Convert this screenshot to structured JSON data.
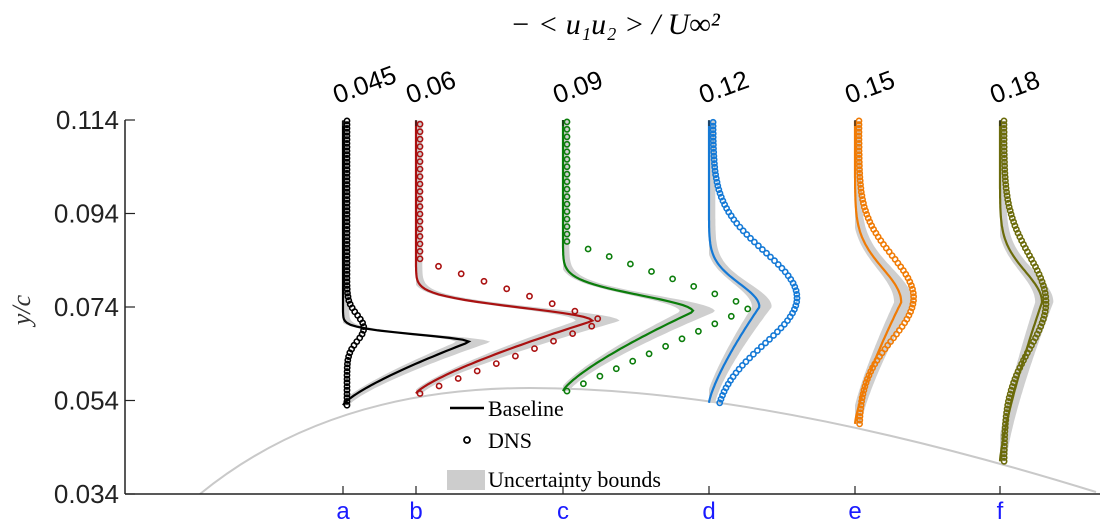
{
  "chart_data": {
    "type": "line",
    "title": "− < u₁u₂ > / U∞²",
    "ylabel": "y/c",
    "ylim": [
      0.034,
      0.114
    ],
    "yticks": [
      0.034,
      0.054,
      0.074,
      0.094,
      0.114
    ],
    "ytick_labels": [
      "0.034",
      "0.054",
      "0.074",
      "0.094",
      "0.114"
    ],
    "legend": {
      "placement": "bottom-center",
      "entries": [
        {
          "key": "baseline",
          "label": "Baseline"
        },
        {
          "key": "dns",
          "label": "DNS"
        },
        {
          "key": "uncertainty",
          "label": "Uncertainty bounds"
        }
      ]
    },
    "profiles": [
      {
        "letter": "a",
        "top_label": "0.045",
        "color": "#000000",
        "ymin": 0.053,
        "y_peak": 0.0665,
        "base_peak": 0.03,
        "base_w": 0.0025,
        "base_drop_y": 0.0715,
        "dns_peak": 0.004,
        "dns_y": 0.0695,
        "dns_w": 0.0028,
        "dns_curve": true
      },
      {
        "letter": "b",
        "top_label": "0.06",
        "color": "#aa1111",
        "ymin": 0.0555,
        "y_peak": 0.071,
        "base_peak": 0.042,
        "base_w": 0.006,
        "base_drop_y": 0.08,
        "dns_peak": 0.044,
        "dns_y": 0.071,
        "dns_w": 0.008,
        "dns_curve": false
      },
      {
        "letter": "c",
        "top_label": "0.09",
        "color": "#0b7d0b",
        "ymin": 0.056,
        "y_peak": 0.073,
        "base_peak": 0.031,
        "base_w": 0.007,
        "base_drop_y": 0.084,
        "dns_peak": 0.044,
        "dns_y": 0.074,
        "dns_w": 0.009,
        "dns_curve": false
      },
      {
        "letter": "d",
        "top_label": "0.12",
        "color": "#1479d6",
        "ymin": 0.0535,
        "y_peak": 0.074,
        "base_peak": 0.012,
        "base_w": 0.006,
        "base_drop_y": 0.09,
        "dns_peak": 0.02,
        "dns_y": 0.076,
        "dns_w": 0.01,
        "dns_curve": true
      },
      {
        "letter": "e",
        "top_label": "0.15",
        "color": "#f07b05",
        "ymin": 0.049,
        "y_peak": 0.075,
        "base_peak": 0.011,
        "base_w": 0.008,
        "base_drop_y": 0.098,
        "dns_peak": 0.013,
        "dns_y": 0.076,
        "dns_w": 0.009,
        "dns_curve": true
      },
      {
        "letter": "f",
        "top_label": "0.18",
        "color": "#6b6b0b",
        "ymin": 0.041,
        "y_peak": 0.075,
        "base_peak": 0.01,
        "base_w": 0.009,
        "base_drop_y": 0.096,
        "dns_peak": 0.01,
        "dns_y": 0.075,
        "dns_w": 0.01,
        "dns_curve": true
      }
    ]
  }
}
